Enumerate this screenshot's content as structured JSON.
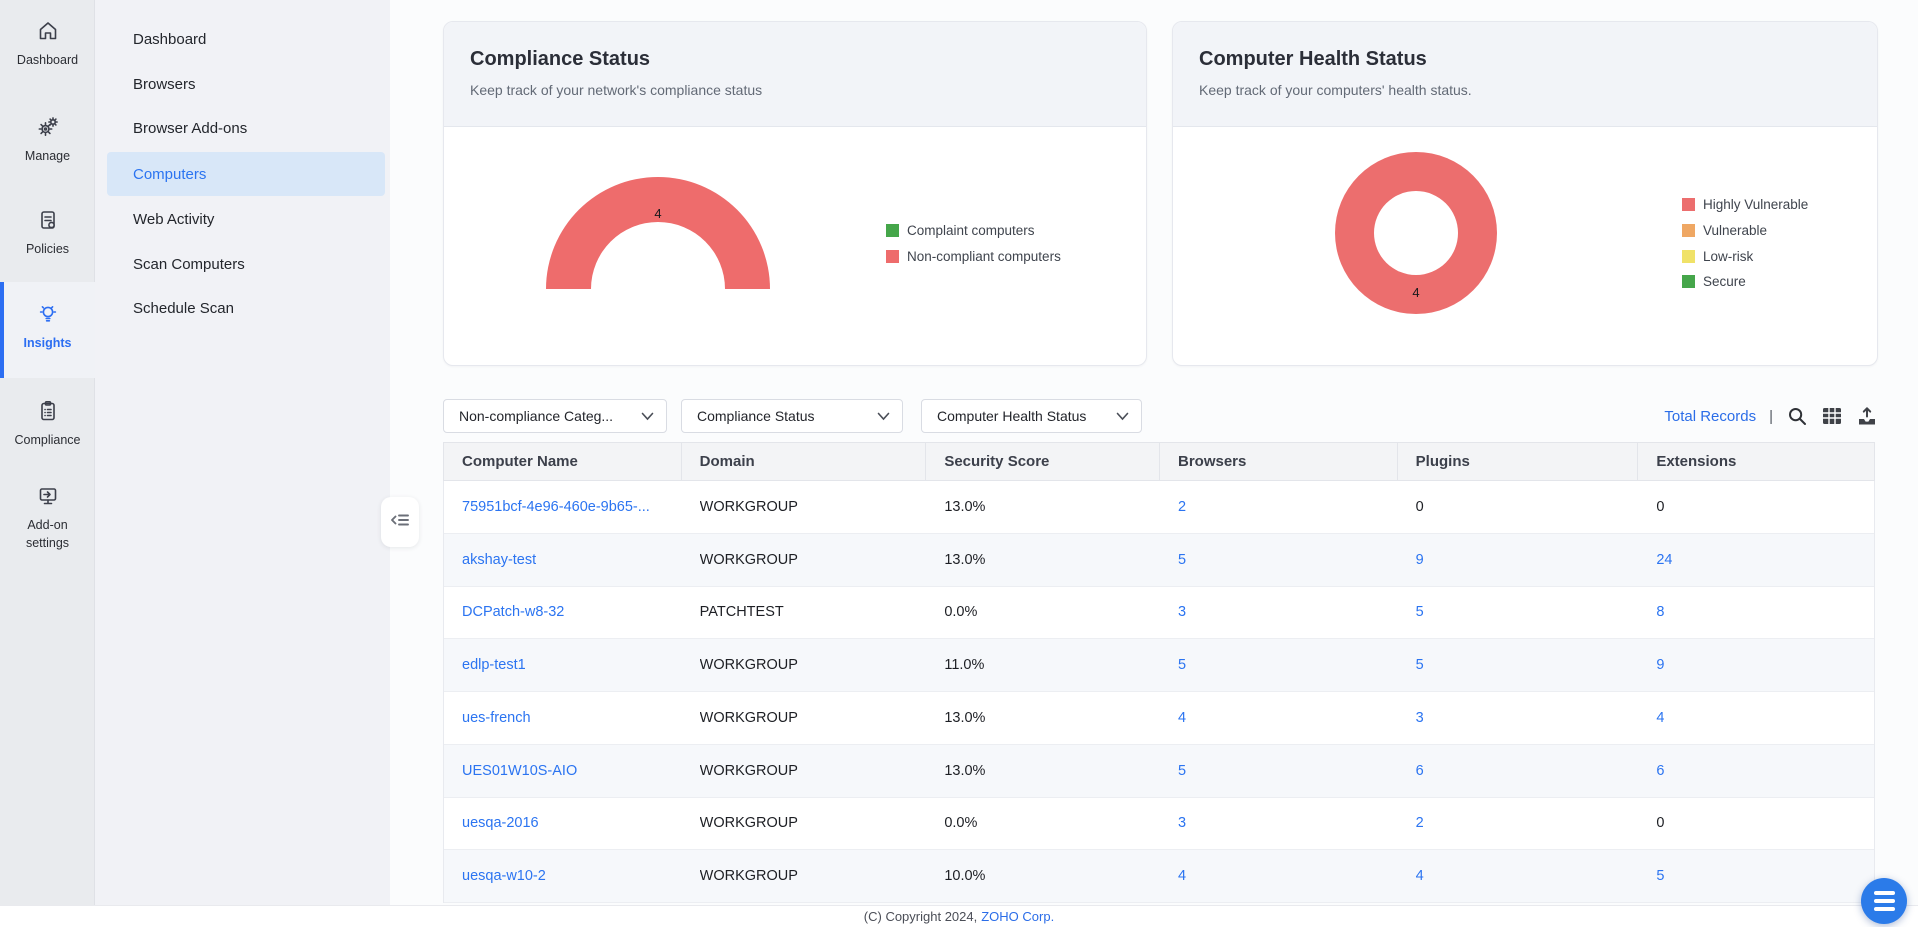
{
  "rail": {
    "items": [
      {
        "label": "Dashboard",
        "icon": "home-icon",
        "active": false
      },
      {
        "label": "Manage",
        "icon": "gears-icon",
        "active": false
      },
      {
        "label": "Policies",
        "icon": "policy-document-icon",
        "active": false
      },
      {
        "label": "Insights",
        "icon": "insights-bulb-icon",
        "active": true
      },
      {
        "label": "Compliance",
        "icon": "compliance-clipboard-icon",
        "active": false
      },
      {
        "label": "Add-on settings",
        "icon": "addon-monitor-icon",
        "active": false
      }
    ]
  },
  "sidebar": {
    "items": [
      {
        "label": "Dashboard",
        "active": false
      },
      {
        "label": "Browsers",
        "active": false
      },
      {
        "label": "Browser Add-ons",
        "active": false
      },
      {
        "label": "Computers",
        "active": true
      },
      {
        "label": "Web Activity",
        "active": false
      },
      {
        "label": "Scan Computers",
        "active": false
      },
      {
        "label": "Schedule Scan",
        "active": false
      }
    ]
  },
  "compliance_card": {
    "title": "Compliance Status",
    "subtitle": "Keep track of your network's compliance status",
    "count_label": "4",
    "legend": [
      {
        "label": "Complaint computers",
        "color": "#45a64a"
      },
      {
        "label": "Non-compliant computers",
        "color": "#ee6c6c"
      }
    ],
    "chart": {
      "type": "half-donut",
      "total": 4,
      "series": [
        {
          "name": "Complaint computers",
          "value": 0
        },
        {
          "name": "Non-compliant computers",
          "value": 4
        }
      ],
      "ring_color": "#ee6c6c"
    }
  },
  "health_card": {
    "title": "Computer Health Status",
    "subtitle": "Keep track of your computers' health status.",
    "count_label": "4",
    "legend": [
      {
        "label": "Highly Vulnerable",
        "color": "#ec6e6e"
      },
      {
        "label": "Vulnerable",
        "color": "#efa763"
      },
      {
        "label": "Low-risk",
        "color": "#f0e268"
      },
      {
        "label": "Secure",
        "color": "#45a64a"
      }
    ],
    "chart": {
      "type": "donut",
      "total": 4,
      "series": [
        {
          "name": "Highly Vulnerable",
          "value": 4
        },
        {
          "name": "Vulnerable",
          "value": 0
        },
        {
          "name": "Low-risk",
          "value": 0
        },
        {
          "name": "Secure",
          "value": 0
        }
      ],
      "ring_color": "#ec6e6e"
    }
  },
  "filters": {
    "dropdowns": [
      {
        "label": "Non-compliance Categ..."
      },
      {
        "label": "Compliance Status"
      },
      {
        "label": "Computer Health Status"
      }
    ]
  },
  "toolbar": {
    "total_records_label": "Total Records",
    "separator": "|",
    "icons": [
      "search-icon",
      "table-view-icon",
      "export-icon"
    ]
  },
  "table": {
    "columns": [
      "Computer Name",
      "Domain",
      "Security Score",
      "Browsers",
      "Plugins",
      "Extensions"
    ],
    "rows": [
      {
        "computer_name": "75951bcf-4e96-460e-9b65-...",
        "domain": "WORKGROUP",
        "security_score": "13.0%",
        "browsers": {
          "text": "2",
          "link": true
        },
        "plugins": {
          "text": "0",
          "link": false
        },
        "extensions": {
          "text": "0",
          "link": false
        }
      },
      {
        "computer_name": "akshay-test",
        "domain": "WORKGROUP",
        "security_score": "13.0%",
        "browsers": {
          "text": "5",
          "link": true
        },
        "plugins": {
          "text": "9",
          "link": true
        },
        "extensions": {
          "text": "24",
          "link": true
        }
      },
      {
        "computer_name": "DCPatch-w8-32",
        "domain": "PATCHTEST",
        "security_score": "0.0%",
        "browsers": {
          "text": "3",
          "link": true
        },
        "plugins": {
          "text": "5",
          "link": true
        },
        "extensions": {
          "text": "8",
          "link": true
        }
      },
      {
        "computer_name": "edlp-test1",
        "domain": "WORKGROUP",
        "security_score": "11.0%",
        "browsers": {
          "text": "5",
          "link": true
        },
        "plugins": {
          "text": "5",
          "link": true
        },
        "extensions": {
          "text": "9",
          "link": true
        }
      },
      {
        "computer_name": "ues-french",
        "domain": "WORKGROUP",
        "security_score": "13.0%",
        "browsers": {
          "text": "4",
          "link": true
        },
        "plugins": {
          "text": "3",
          "link": true
        },
        "extensions": {
          "text": "4",
          "link": true
        }
      },
      {
        "computer_name": "UES01W10S-AIO",
        "domain": "WORKGROUP",
        "security_score": "13.0%",
        "browsers": {
          "text": "5",
          "link": true
        },
        "plugins": {
          "text": "6",
          "link": true
        },
        "extensions": {
          "text": "6",
          "link": true
        }
      },
      {
        "computer_name": "uesqa-2016",
        "domain": "WORKGROUP",
        "security_score": "0.0%",
        "browsers": {
          "text": "3",
          "link": true
        },
        "plugins": {
          "text": "2",
          "link": true
        },
        "extensions": {
          "text": "0",
          "link": false
        }
      },
      {
        "computer_name": "uesqa-w10-2",
        "domain": "WORKGROUP",
        "security_score": "10.0%",
        "browsers": {
          "text": "4",
          "link": true
        },
        "plugins": {
          "text": "4",
          "link": true
        },
        "extensions": {
          "text": "5",
          "link": true
        }
      }
    ]
  },
  "footer": {
    "copyright_text": "(C) Copyright 2024,",
    "company_link": "ZOHO Corp."
  },
  "colors": {
    "accent_blue": "#2b74f1",
    "chart_red": "#ee6c6c",
    "selected_item_bg": "#d8e7f8"
  }
}
